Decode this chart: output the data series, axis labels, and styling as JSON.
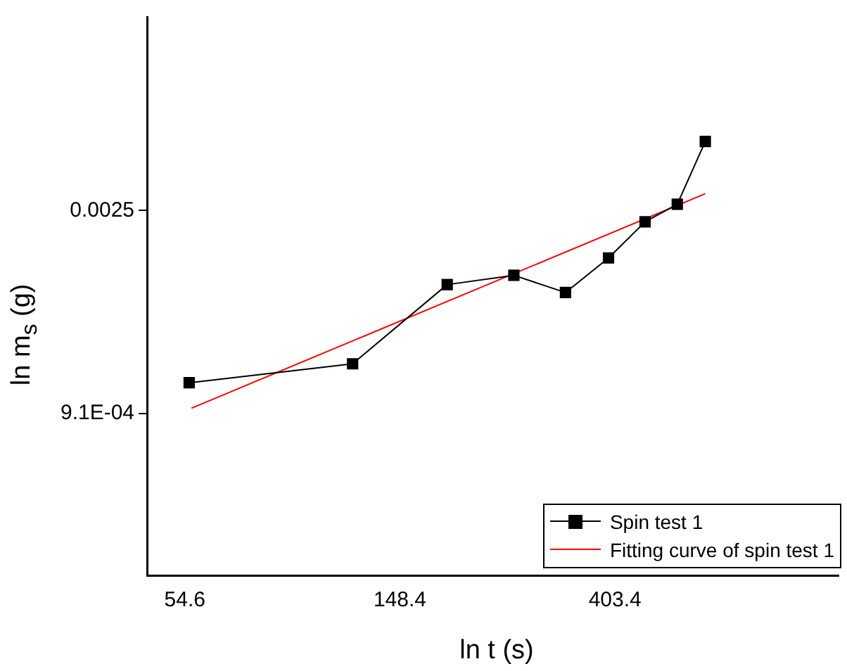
{
  "chart_data": {
    "type": "line",
    "xlabel": "ln t (s)",
    "ylabel": "ln m$_{s}$ (g)",
    "log": "xy",
    "grid": false,
    "legend": "bottom right",
    "xlim": [
      45.8,
      1141
    ],
    "ylim": [
      0.000407,
      0.00655
    ],
    "xticks": [
      54.6,
      148.4,
      403.4
    ],
    "yticks": [
      {
        "value": 0.00091,
        "label": "9.1E-04"
      },
      0.0025
    ],
    "series": [
      {
        "name": "Spin test 1",
        "color": "#000000",
        "marker": "square",
        "line_style": "solid",
        "x": [
          55.7,
          119.1,
          184.9,
          252.1,
          320.5,
          391.5,
          464.0,
          539.0,
          614.0
        ],
        "values": [
          0.001061,
          0.001166,
          0.001729,
          0.001811,
          0.001662,
          0.001974,
          0.002363,
          0.002579,
          0.003525
        ]
      },
      {
        "name": "Fitting curve of spin test 1",
        "color": "#ff0000",
        "marker": "none",
        "line_style": "solid",
        "x": [
          56.3,
          614.0
        ],
        "values": [
          0.000935,
          0.002718
        ]
      }
    ]
  }
}
